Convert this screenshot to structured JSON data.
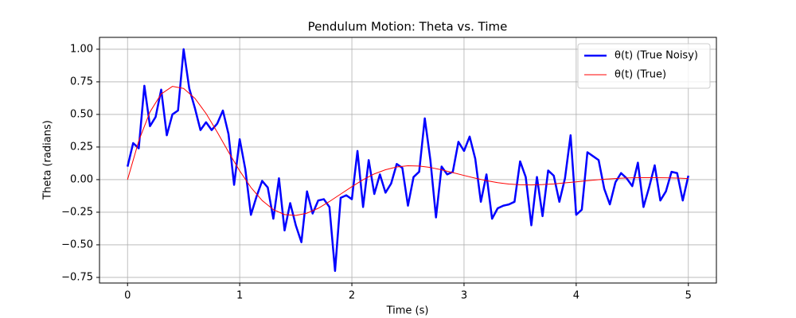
{
  "chart_data": {
    "type": "line",
    "title": "Pendulum Motion: Theta vs. Time",
    "x_label": "Time (s)",
    "y_label": "Theta (radians)",
    "xlim": [
      -0.25,
      5.25
    ],
    "ylim": [
      -0.793,
      1.091
    ],
    "xticks": [
      0,
      1,
      2,
      3,
      4,
      5
    ],
    "yticks": [
      {
        "value": -0.75,
        "label": "−0.75"
      },
      {
        "value": -0.5,
        "label": "−0.50"
      },
      {
        "value": -0.25,
        "label": "−0.25"
      },
      {
        "value": 0,
        "label": "0.00"
      },
      {
        "value": 0.25,
        "label": "0.25"
      },
      {
        "value": 0.5,
        "label": "0.50"
      },
      {
        "value": 0.75,
        "label": "0.75"
      },
      {
        "value": 1,
        "label": "1.00"
      }
    ],
    "grid": true,
    "legend": "upper right",
    "series": [
      {
        "name": "θ(t) (True Noisy)",
        "color": "#0000ff",
        "width": 2.5,
        "x": [
          0,
          0.05,
          0.1,
          0.15,
          0.2,
          0.25,
          0.3,
          0.35,
          0.4,
          0.45,
          0.5,
          0.55,
          0.6,
          0.65,
          0.7,
          0.75,
          0.8,
          0.85,
          0.9,
          0.95,
          1,
          1.05,
          1.1,
          1.15,
          1.2,
          1.25,
          1.3,
          1.35,
          1.4,
          1.45,
          1.5,
          1.55,
          1.6,
          1.65,
          1.7,
          1.75,
          1.8,
          1.85,
          1.9,
          1.95,
          2,
          2.05,
          2.1,
          2.15,
          2.2,
          2.25,
          2.3,
          2.35,
          2.4,
          2.45,
          2.5,
          2.55,
          2.6,
          2.65,
          2.7,
          2.75,
          2.8,
          2.85,
          2.9,
          2.95,
          3,
          3.05,
          3.1,
          3.15,
          3.2,
          3.25,
          3.3,
          3.35,
          3.4,
          3.45,
          3.5,
          3.55,
          3.6,
          3.65,
          3.7,
          3.75,
          3.8,
          3.85,
          3.9,
          3.95,
          4,
          4.05,
          4.1,
          4.15,
          4.2,
          4.25,
          4.3,
          4.35,
          4.4,
          4.45,
          4.5,
          4.55,
          4.6,
          4.65,
          4.7,
          4.75,
          4.8,
          4.85,
          4.9,
          4.95,
          5
        ],
        "values": [
          0.1,
          0.28,
          0.24,
          0.72,
          0.41,
          0.48,
          0.69,
          0.34,
          0.5,
          0.53,
          1.0,
          0.7,
          0.55,
          0.38,
          0.44,
          0.38,
          0.43,
          0.53,
          0.35,
          -0.04,
          0.31,
          0.08,
          -0.27,
          -0.13,
          -0.01,
          -0.06,
          -0.3,
          0.01,
          -0.39,
          -0.18,
          -0.35,
          -0.48,
          -0.09,
          -0.26,
          -0.16,
          -0.15,
          -0.21,
          -0.7,
          -0.14,
          -0.12,
          -0.15,
          0.22,
          -0.21,
          0.15,
          -0.11,
          0.04,
          -0.1,
          -0.03,
          0.12,
          0.09,
          -0.2,
          0.02,
          0.06,
          0.47,
          0.15,
          -0.29,
          0.1,
          0.04,
          0.06,
          0.29,
          0.22,
          0.33,
          0.16,
          -0.17,
          0.04,
          -0.3,
          -0.22,
          -0.2,
          -0.19,
          -0.17,
          0.14,
          0.02,
          -0.35,
          0.02,
          -0.28,
          0.07,
          0.03,
          -0.17,
          0.01,
          0.34,
          -0.27,
          -0.23,
          0.21,
          0.18,
          0.15,
          -0.07,
          -0.19,
          -0.02,
          0.05,
          0.01,
          -0.05,
          0.13,
          -0.21,
          -0.06,
          0.11,
          -0.16,
          -0.09,
          0.06,
          0.05,
          -0.16,
          0.03
        ]
      },
      {
        "name": "θ(t) (True)",
        "color": "#ff0000",
        "width": 1,
        "x": [
          0,
          0.1,
          0.2,
          0.3,
          0.4,
          0.5,
          0.6,
          0.7,
          0.8,
          0.9,
          1,
          1.1,
          1.2,
          1.3,
          1.4,
          1.5,
          1.6,
          1.7,
          1.8,
          1.9,
          2,
          2.1,
          2.2,
          2.3,
          2.4,
          2.5,
          2.6,
          2.7,
          2.8,
          2.9,
          3,
          3.1,
          3.2,
          3.3,
          3.4,
          3.5,
          3.6,
          3.7,
          3.8,
          3.9,
          4,
          4.1,
          4.2,
          4.3,
          4.4,
          4.5,
          4.6,
          4.7,
          4.8,
          4.9,
          5
        ],
        "values": [
          0,
          0.297,
          0.519,
          0.657,
          0.715,
          0.699,
          0.624,
          0.507,
          0.364,
          0.212,
          0.067,
          -0.06,
          -0.16,
          -0.23,
          -0.268,
          -0.275,
          -0.257,
          -0.22,
          -0.168,
          -0.111,
          -0.054,
          -0.001,
          0.044,
          0.076,
          0.097,
          0.106,
          0.104,
          0.093,
          0.075,
          0.054,
          0.032,
          0.011,
          -0.008,
          -0.023,
          -0.034,
          -0.039,
          -0.041,
          -0.038,
          -0.033,
          -0.025,
          -0.017,
          -0.008,
          0,
          0.006,
          0.011,
          0.014,
          0.015,
          0.015,
          0.014,
          0.012,
          0.008
        ]
      }
    ]
  }
}
